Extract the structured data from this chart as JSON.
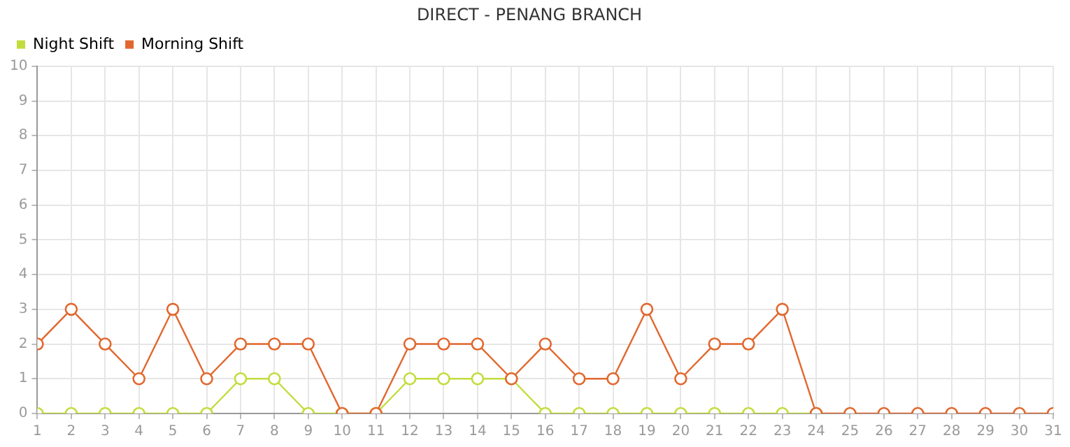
{
  "chart_data": {
    "type": "line",
    "title": "DIRECT - PENANG BRANCH",
    "x": [
      1,
      2,
      3,
      4,
      5,
      6,
      7,
      8,
      9,
      10,
      11,
      12,
      13,
      14,
      15,
      16,
      17,
      18,
      19,
      20,
      21,
      22,
      23,
      24,
      25,
      26,
      27,
      28,
      29,
      30,
      31
    ],
    "series": [
      {
        "name": "Night Shift",
        "color": "#c2dc3c",
        "values": [
          0,
          0,
          0,
          0,
          0,
          0,
          1,
          1,
          0,
          0,
          0,
          1,
          1,
          1,
          1,
          0,
          0,
          0,
          0,
          0,
          0,
          0,
          0,
          0,
          null,
          null,
          null,
          null,
          null,
          null,
          null
        ]
      },
      {
        "name": "Morning Shift",
        "color": "#e2672e",
        "values": [
          2,
          3,
          2,
          1,
          3,
          1,
          2,
          2,
          2,
          0,
          0,
          2,
          2,
          2,
          1,
          2,
          1,
          1,
          3,
          1,
          2,
          2,
          3,
          0,
          0,
          0,
          0,
          0,
          0,
          0,
          0
        ]
      }
    ],
    "xlim": [
      1,
      31
    ],
    "xticks": [
      1,
      2,
      3,
      4,
      5,
      6,
      7,
      8,
      9,
      10,
      11,
      12,
      13,
      14,
      15,
      16,
      17,
      18,
      19,
      20,
      21,
      22,
      23,
      24,
      25,
      26,
      27,
      28,
      29,
      30,
      31
    ],
    "ylim": [
      0,
      10
    ],
    "yticks": [
      0,
      1,
      2,
      3,
      4,
      5,
      6,
      7,
      8,
      9,
      10
    ],
    "grid": true,
    "legend": "top left",
    "marker": "circle",
    "line_style": "solid"
  }
}
